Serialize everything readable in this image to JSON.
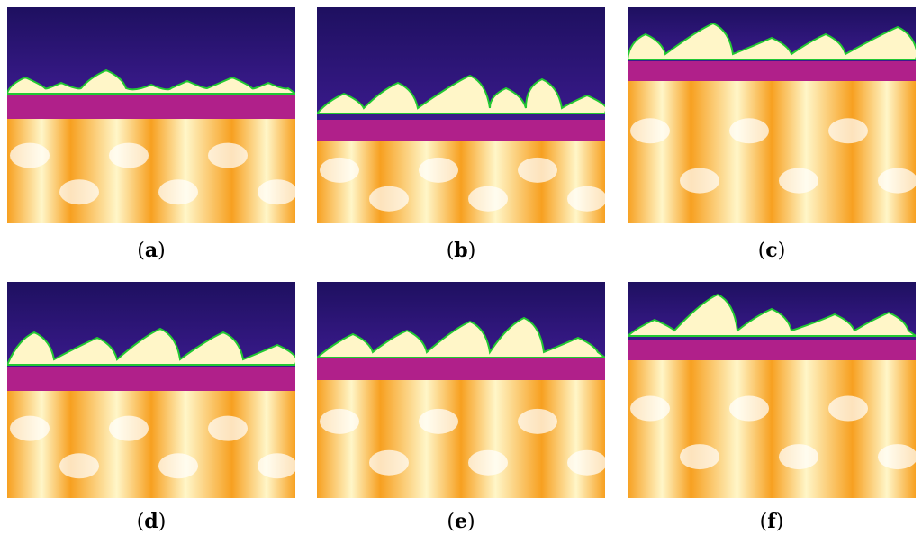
{
  "panels": [
    {
      "label": "a"
    },
    {
      "label": "b"
    },
    {
      "label": "c"
    },
    {
      "label": "d"
    },
    {
      "label": "e"
    },
    {
      "label": "f"
    }
  ],
  "colors": {
    "sky": "#3a1a8c",
    "sky_dark": "#1e1060",
    "band": "#b0208a",
    "hot": "#fff6c8",
    "warm": "#f7a020",
    "outline": "#22c832"
  }
}
